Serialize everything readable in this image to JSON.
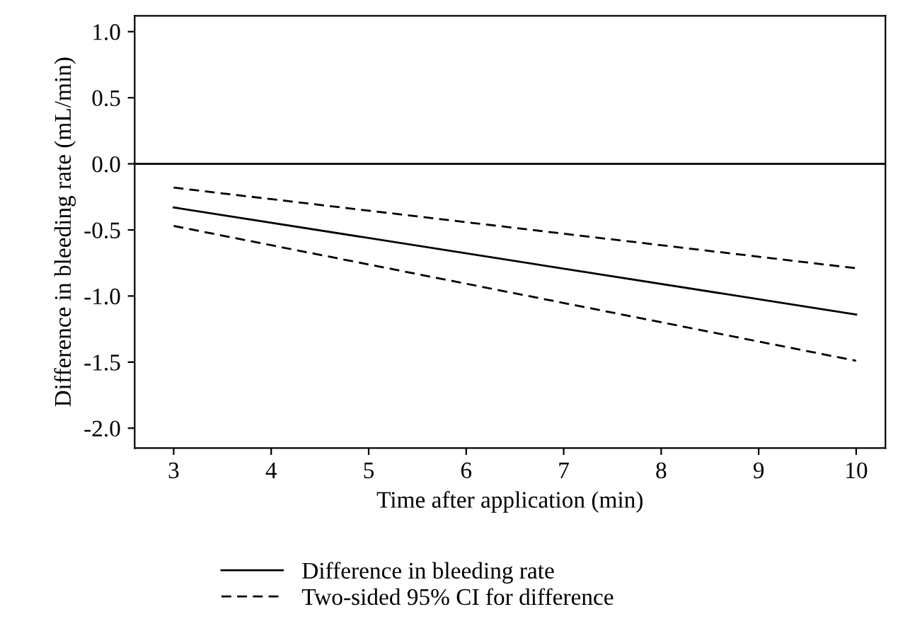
{
  "chart_data": {
    "type": "line",
    "xlabel": "Time after application (min)",
    "ylabel": "Difference in bleeding rate (mL/min)",
    "x": [
      3,
      10
    ],
    "series": [
      {
        "name": "Difference in bleeding rate",
        "color": "#000000",
        "values": [
          -0.33,
          -1.14
        ],
        "line_style": "solid"
      },
      {
        "name": "Two-sided 95% CI for difference",
        "color": "#000000",
        "values": [
          -0.18,
          -0.79
        ],
        "line_style": "dashed"
      },
      {
        "color": "#000000",
        "values": [
          -0.47,
          -1.49
        ],
        "line_style": "dashed"
      }
    ],
    "xlim": [
      2.6,
      10.3
    ],
    "xticks": [
      3,
      4,
      5,
      6,
      7,
      8,
      9,
      10
    ],
    "ylim": [
      -2.15,
      1.12
    ],
    "yticks": [
      {
        "value": -2,
        "label": "-2.0"
      },
      {
        "value": -1.5,
        "label": "-1.5"
      },
      {
        "value": -1,
        "label": "-1.0"
      },
      {
        "value": -0.5,
        "label": "-0.5"
      },
      {
        "value": 0,
        "label": "0.0"
      },
      {
        "value": 0.5,
        "label": "0.5"
      },
      {
        "value": 1,
        "label": "1.0"
      }
    ],
    "ref_lines": [
      {
        "axis": "y",
        "value": 0,
        "color": "#000000",
        "line_style": "solid"
      }
    ],
    "legend": "bottom",
    "grid": false,
    "marker": "none"
  }
}
